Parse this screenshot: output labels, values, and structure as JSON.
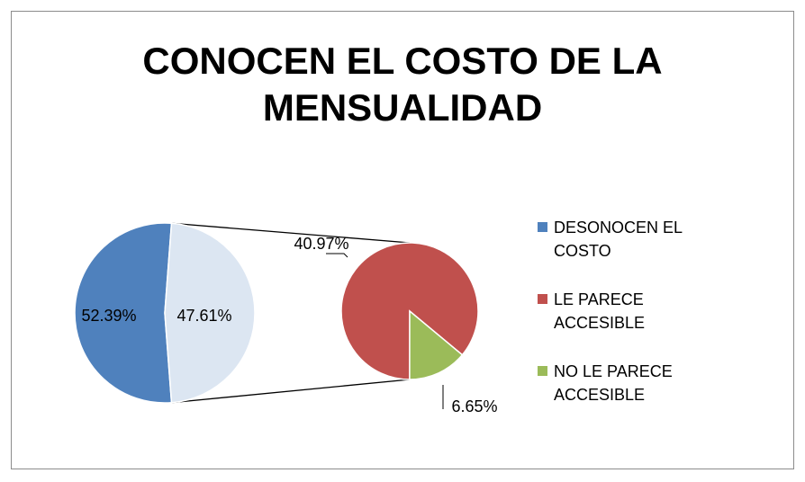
{
  "chart_data": {
    "type": "pie_of_pie",
    "title": "CONOCEN EL COSTO DE LA MENSUALIDAD",
    "series": [
      {
        "name": "DESONOCEN EL COSTO",
        "color": "#4f81bd",
        "values": [
          52.39
        ],
        "value_labels": [
          "52.39%"
        ]
      },
      {
        "name": "LE PARECE ACCESIBLE",
        "color": "#c0504d",
        "values": [
          40.97
        ],
        "value_labels": [
          "40.97%"
        ]
      },
      {
        "name": "NO LE PARECE ACCESIBLE",
        "color": "#9bbb59",
        "values": [
          6.65
        ],
        "value_labels": [
          "6.65%"
        ]
      }
    ],
    "other": {
      "color": "#dce6f2",
      "values": [
        47.61
      ],
      "value_labels": [
        "47.61%"
      ]
    },
    "legend": "right"
  }
}
